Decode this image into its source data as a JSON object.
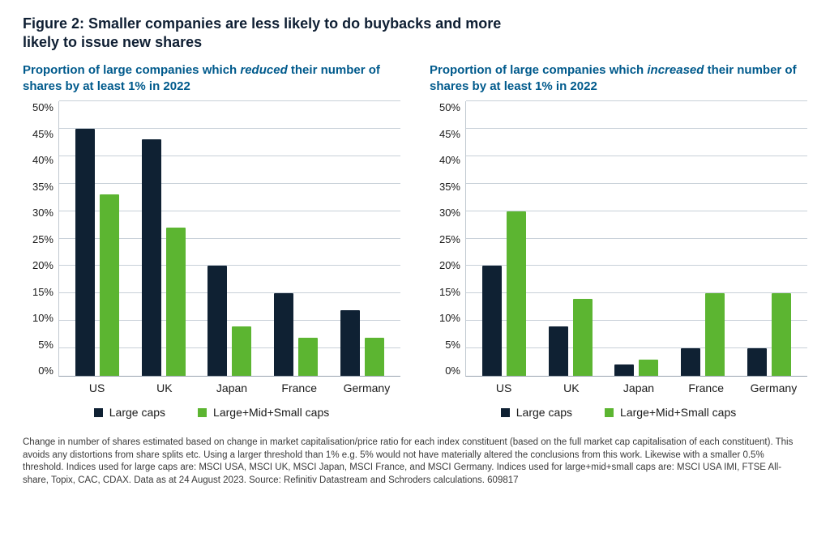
{
  "figure_title": "Figure 2: Smaller companies are less likely to do buybacks and more likely to issue new shares",
  "series_colors": {
    "large": "#0f2133",
    "all": "#5cb531"
  },
  "series_labels": {
    "large": "Large caps",
    "all": "Large+Mid+Small caps"
  },
  "yaxis": {
    "min": 0,
    "max": 50,
    "step": 5,
    "ticks": [
      "50%",
      "45%",
      "40%",
      "35%",
      "30%",
      "25%",
      "20%",
      "15%",
      "10%",
      "5%",
      "0%"
    ]
  },
  "grid_color": "#c8d0d8",
  "background_color": "#ffffff",
  "text_color": "#1a1a1a",
  "subtitle_color": "#005a8c",
  "left_chart": {
    "subtitle_prefix": "Proportion of large companies which ",
    "subtitle_em": "reduced",
    "subtitle_suffix": " their number of shares by at least 1% in 2022",
    "categories": [
      "US",
      "UK",
      "Japan",
      "France",
      "Germany"
    ],
    "values_large": [
      45,
      43,
      20,
      15,
      12
    ],
    "values_all": [
      33,
      27,
      9,
      7,
      7
    ]
  },
  "right_chart": {
    "subtitle_prefix": "Proportion of large companies which ",
    "subtitle_em": "increased",
    "subtitle_suffix": " their number of shares by at least 1% in 2022",
    "categories": [
      "US",
      "UK",
      "Japan",
      "France",
      "Germany"
    ],
    "values_large": [
      20,
      9,
      2,
      5,
      5
    ],
    "values_all": [
      30,
      14,
      3,
      15,
      15
    ]
  },
  "footnote": "Change in number of shares estimated based on change in market capitalisation/price ratio for each index constituent (based on the full market cap capitalisation of each constituent). This avoids any distortions from share splits etc. Using a larger threshold than 1% e.g. 5% would not have materially altered the conclusions from this work. Likewise with a smaller 0.5% threshold. Indices used for large caps are: MSCI USA, MSCI UK, MSCI Japan, MSCI France, and MSCI Germany. Indices used for large+mid+small caps are: MSCI USA IMI, FTSE All-share, Topix, CAC, CDAX. Data as at 24 August 2023. Source: Refinitiv Datastream and Schroders calculations. 609817"
}
